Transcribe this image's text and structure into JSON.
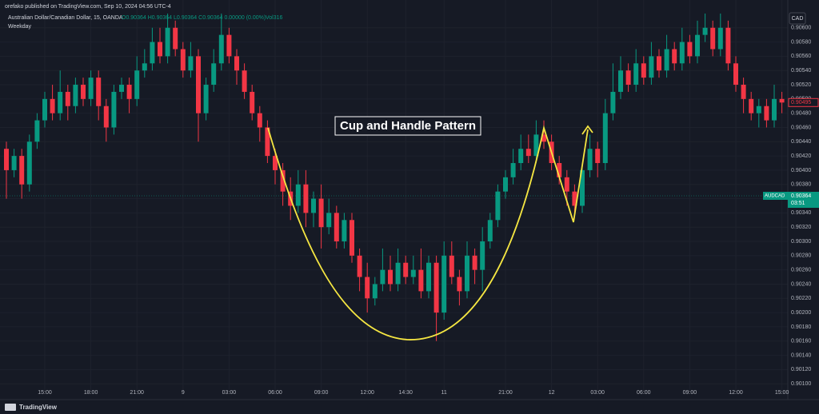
{
  "header": {
    "publisher": "orefako published on TradingView.com, Sep 10, 2024 04:56 UTC-4",
    "symbol": "Australian Dollar/Canadian Dollar, 15, OANDA",
    "ohlc_text": "O0.90364 H0.90364 L0.90364 C0.90364 0.00000 (0.00%)",
    "volume": "Vol316",
    "indicator": "Weekday",
    "currency": "CAD"
  },
  "footer": {
    "brand": "TradingView"
  },
  "chart_data": {
    "type": "candlestick",
    "annotation": "Cup and Handle Pattern",
    "up_color": "#089981",
    "down_color": "#f23645",
    "grid": true,
    "current_close": {
      "value": 0.90495,
      "label": "0.90495"
    },
    "last_price": {
      "value": 0.90364,
      "label": "0.90364",
      "name": "AUDCAD",
      "countdown": "03:51"
    },
    "ylim": [
      0.90089,
      0.90639
    ],
    "yticks": [
      {
        "value": 0.906,
        "label": "0.90600"
      },
      {
        "value": 0.9058,
        "label": "0.90580"
      },
      {
        "value": 0.9056,
        "label": "0.90560"
      },
      {
        "value": 0.9054,
        "label": "0.90540"
      },
      {
        "value": 0.9052,
        "label": "0.90520"
      },
      {
        "value": 0.905,
        "label": "0.90500"
      },
      {
        "value": 0.9048,
        "label": "0.90480"
      },
      {
        "value": 0.9046,
        "label": "0.90460"
      },
      {
        "value": 0.9044,
        "label": "0.90440"
      },
      {
        "value": 0.9042,
        "label": "0.90420"
      },
      {
        "value": 0.904,
        "label": "0.90400"
      },
      {
        "value": 0.9038,
        "label": "0.90380"
      },
      {
        "value": 0.9036,
        "label": "0.90360"
      },
      {
        "value": 0.9034,
        "label": "0.90340"
      },
      {
        "value": 0.9032,
        "label": "0.90320"
      },
      {
        "value": 0.903,
        "label": "0.90300"
      },
      {
        "value": 0.9028,
        "label": "0.90280"
      },
      {
        "value": 0.9026,
        "label": "0.90260"
      },
      {
        "value": 0.9024,
        "label": "0.90240"
      },
      {
        "value": 0.9022,
        "label": "0.90220"
      },
      {
        "value": 0.902,
        "label": "0.90200"
      },
      {
        "value": 0.9018,
        "label": "0.90180"
      },
      {
        "value": 0.9016,
        "label": "0.90160"
      },
      {
        "value": 0.9014,
        "label": "0.90140"
      },
      {
        "value": 0.9012,
        "label": "0.90120"
      },
      {
        "value": 0.901,
        "label": "0.90100"
      }
    ],
    "categories": [
      null,
      null,
      null,
      null,
      null,
      "15:00",
      null,
      null,
      null,
      null,
      null,
      "18:00",
      null,
      null,
      null,
      null,
      null,
      "21:00",
      null,
      null,
      null,
      null,
      null,
      "9",
      null,
      null,
      null,
      null,
      null,
      "03:00",
      null,
      null,
      null,
      null,
      null,
      "06:00",
      null,
      null,
      null,
      null,
      null,
      "09:00",
      null,
      null,
      null,
      null,
      null,
      "12:00",
      null,
      null,
      null,
      null,
      "14:30",
      null,
      null,
      null,
      null,
      "11",
      null,
      null,
      null,
      null,
      null,
      null,
      null,
      "21:00",
      null,
      null,
      null,
      null,
      null,
      "12",
      null,
      null,
      null,
      null,
      null,
      "03:00",
      null,
      null,
      null,
      null,
      null,
      "06:00",
      null,
      null,
      null,
      null,
      null,
      "09:00",
      null,
      null,
      null,
      null,
      null,
      "12:00",
      null,
      null,
      null,
      null,
      null,
      "15:00"
    ],
    "ohlc": [
      [
        0.9043,
        0.9044,
        0.9036,
        0.904
      ],
      [
        0.904,
        0.9043,
        0.9039,
        0.9042
      ],
      [
        0.9042,
        0.9043,
        0.9036,
        0.9038
      ],
      [
        0.9038,
        0.9045,
        0.9037,
        0.9044
      ],
      [
        0.9044,
        0.9048,
        0.9043,
        0.9047
      ],
      [
        0.9047,
        0.9051,
        0.9046,
        0.905
      ],
      [
        0.905,
        0.9052,
        0.9047,
        0.9048
      ],
      [
        0.9048,
        0.9054,
        0.9047,
        0.9051
      ],
      [
        0.9051,
        0.9052,
        0.9047,
        0.9049
      ],
      [
        0.9049,
        0.9053,
        0.9048,
        0.9052
      ],
      [
        0.9052,
        0.9053,
        0.9049,
        0.905
      ],
      [
        0.905,
        0.9054,
        0.9049,
        0.9053
      ],
      [
        0.9053,
        0.9054,
        0.9047,
        0.9049
      ],
      [
        0.9049,
        0.905,
        0.9044,
        0.9046
      ],
      [
        0.9046,
        0.9052,
        0.9045,
        0.9051
      ],
      [
        0.9051,
        0.9053,
        0.905,
        0.9052
      ],
      [
        0.9052,
        0.9053,
        0.9048,
        0.905
      ],
      [
        0.905,
        0.9056,
        0.9049,
        0.9054
      ],
      [
        0.9054,
        0.9057,
        0.9053,
        0.9055
      ],
      [
        0.9055,
        0.906,
        0.9054,
        0.9058
      ],
      [
        0.9058,
        0.906,
        0.9055,
        0.9056
      ],
      [
        0.9056,
        0.9062,
        0.9055,
        0.906
      ],
      [
        0.906,
        0.9061,
        0.9056,
        0.9057
      ],
      [
        0.9057,
        0.9058,
        0.9053,
        0.9054
      ],
      [
        0.9054,
        0.9058,
        0.9053,
        0.9056
      ],
      [
        0.9056,
        0.9057,
        0.9044,
        0.9048
      ],
      [
        0.9048,
        0.9053,
        0.9047,
        0.9052
      ],
      [
        0.9052,
        0.9057,
        0.9051,
        0.9055
      ],
      [
        0.9055,
        0.9062,
        0.9054,
        0.9059
      ],
      [
        0.9059,
        0.906,
        0.9055,
        0.9056
      ],
      [
        0.9056,
        0.9057,
        0.9052,
        0.9054
      ],
      [
        0.9054,
        0.9055,
        0.905,
        0.9051
      ],
      [
        0.9051,
        0.9052,
        0.9047,
        0.9048
      ],
      [
        0.9048,
        0.9049,
        0.9044,
        0.9046
      ],
      [
        0.9046,
        0.9047,
        0.9041,
        0.9042
      ],
      [
        0.9042,
        0.9043,
        0.9038,
        0.904
      ],
      [
        0.904,
        0.9041,
        0.9035,
        0.9037
      ],
      [
        0.9037,
        0.9039,
        0.9033,
        0.9035
      ],
      [
        0.9035,
        0.904,
        0.9034,
        0.9038
      ],
      [
        0.9038,
        0.904,
        0.9032,
        0.9034
      ],
      [
        0.9034,
        0.9037,
        0.9032,
        0.9036
      ],
      [
        0.9036,
        0.9038,
        0.9029,
        0.9032
      ],
      [
        0.9032,
        0.9036,
        0.9031,
        0.9034
      ],
      [
        0.9034,
        0.9035,
        0.9029,
        0.903
      ],
      [
        0.903,
        0.9034,
        0.9029,
        0.9033
      ],
      [
        0.9033,
        0.9034,
        0.9027,
        0.9028
      ],
      [
        0.9028,
        0.9029,
        0.9023,
        0.9025
      ],
      [
        0.9025,
        0.9027,
        0.902,
        0.9022
      ],
      [
        0.9022,
        0.9025,
        0.9021,
        0.9024
      ],
      [
        0.9024,
        0.9029,
        0.9023,
        0.9026
      ],
      [
        0.9026,
        0.9028,
        0.9023,
        0.9024
      ],
      [
        0.9024,
        0.9029,
        0.9023,
        0.9027
      ],
      [
        0.9027,
        0.9028,
        0.9024,
        0.9025
      ],
      [
        0.9025,
        0.9028,
        0.9024,
        0.9026
      ],
      [
        0.9026,
        0.9029,
        0.9022,
        0.9023
      ],
      [
        0.9023,
        0.9028,
        0.9022,
        0.9027
      ],
      [
        0.9027,
        0.9028,
        0.9016,
        0.902
      ],
      [
        0.902,
        0.903,
        0.9019,
        0.9028
      ],
      [
        0.9028,
        0.903,
        0.9024,
        0.9025
      ],
      [
        0.9025,
        0.9026,
        0.9021,
        0.9023
      ],
      [
        0.9023,
        0.903,
        0.9022,
        0.9028
      ],
      [
        0.9028,
        0.9029,
        0.9024,
        0.9026
      ],
      [
        0.9026,
        0.9032,
        0.9023,
        0.903
      ],
      [
        0.903,
        0.9034,
        0.9029,
        0.9033
      ],
      [
        0.9033,
        0.9038,
        0.9032,
        0.9037
      ],
      [
        0.9037,
        0.904,
        0.9036,
        0.9039
      ],
      [
        0.9039,
        0.9043,
        0.9038,
        0.9041
      ],
      [
        0.9041,
        0.9045,
        0.904,
        0.9043
      ],
      [
        0.9043,
        0.9045,
        0.9041,
        0.9042
      ],
      [
        0.9042,
        0.9047,
        0.9041,
        0.9045
      ],
      [
        0.9045,
        0.9047,
        0.9043,
        0.9044
      ],
      [
        0.9044,
        0.9045,
        0.904,
        0.9041
      ],
      [
        0.9041,
        0.9042,
        0.9038,
        0.9039
      ],
      [
        0.9039,
        0.904,
        0.9035,
        0.9037
      ],
      [
        0.9037,
        0.9038,
        0.9034,
        0.9035
      ],
      [
        0.9035,
        0.9041,
        0.9034,
        0.904
      ],
      [
        0.904,
        0.9045,
        0.9039,
        0.9043
      ],
      [
        0.9043,
        0.9044,
        0.9039,
        0.9041
      ],
      [
        0.9041,
        0.905,
        0.904,
        0.9048
      ],
      [
        0.9048,
        0.9055,
        0.9047,
        0.9051
      ],
      [
        0.9051,
        0.9056,
        0.905,
        0.9054
      ],
      [
        0.9054,
        0.9055,
        0.9051,
        0.9052
      ],
      [
        0.9052,
        0.9057,
        0.9051,
        0.9055
      ],
      [
        0.9055,
        0.9056,
        0.9052,
        0.9053
      ],
      [
        0.9053,
        0.9058,
        0.9052,
        0.9056
      ],
      [
        0.9056,
        0.9057,
        0.9053,
        0.9054
      ],
      [
        0.9054,
        0.9059,
        0.9053,
        0.9057
      ],
      [
        0.9057,
        0.9058,
        0.9054,
        0.9055
      ],
      [
        0.9055,
        0.906,
        0.9054,
        0.9058
      ],
      [
        0.9058,
        0.9059,
        0.9055,
        0.9056
      ],
      [
        0.9056,
        0.9061,
        0.9055,
        0.9059
      ],
      [
        0.9059,
        0.9062,
        0.9058,
        0.906
      ],
      [
        0.906,
        0.9061,
        0.9056,
        0.9057
      ],
      [
        0.9057,
        0.9062,
        0.9056,
        0.906
      ],
      [
        0.906,
        0.9061,
        0.9054,
        0.9055
      ],
      [
        0.9055,
        0.9056,
        0.9051,
        0.9052
      ],
      [
        0.9052,
        0.9053,
        0.9048,
        0.905
      ],
      [
        0.905,
        0.9051,
        0.9047,
        0.9048
      ],
      [
        0.9048,
        0.905,
        0.9046,
        0.9049
      ],
      [
        0.9049,
        0.905,
        0.9046,
        0.9047
      ],
      [
        0.9047,
        0.9052,
        0.9046,
        0.905
      ],
      [
        0.905,
        0.9051,
        0.9048,
        0.90495
      ]
    ]
  }
}
